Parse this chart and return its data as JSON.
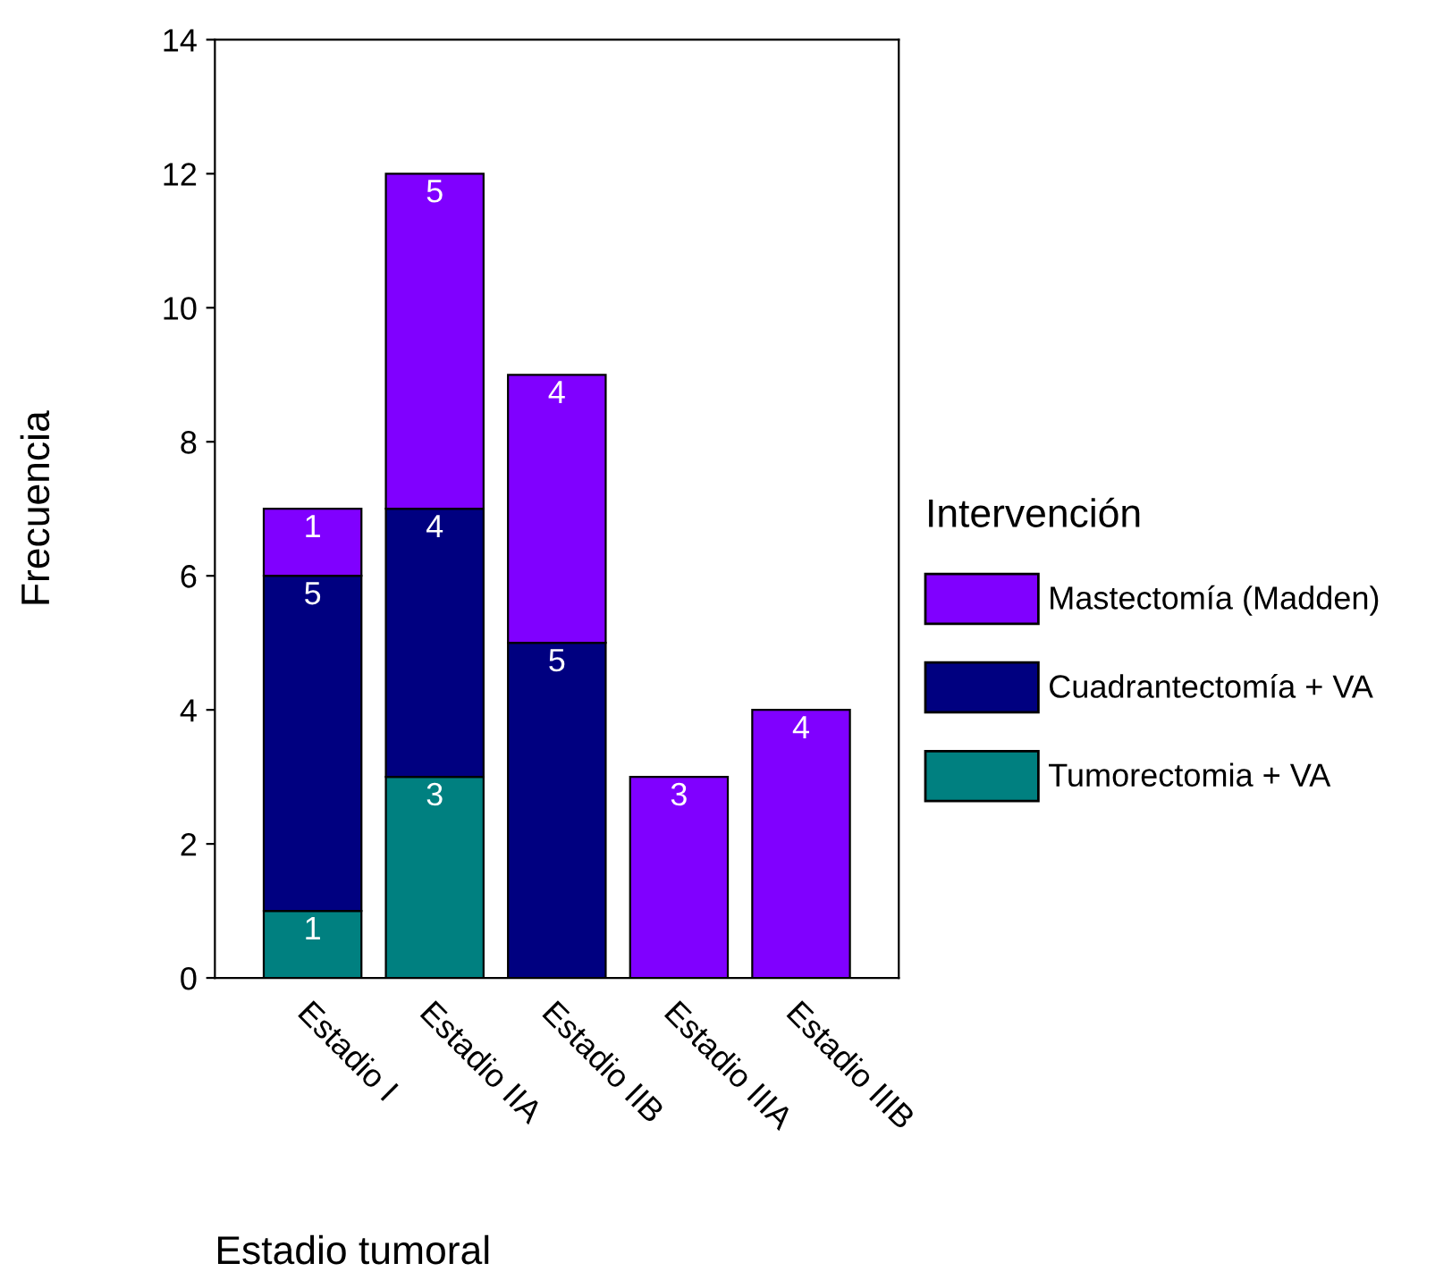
{
  "chart_data": {
    "type": "bar",
    "stacked": true,
    "xlabel": "Estadio tumoral",
    "ylabel": "Frecuencia",
    "legend_title": "Intervención",
    "legend": "right",
    "categories": [
      "Estadio I",
      "Estadio IIA",
      "Estadio IIB",
      "Estadio IIIA",
      "Estadio IIIB"
    ],
    "series": [
      {
        "name": "Tumorectomia + VA",
        "color": "#008080",
        "values": [
          1,
          3,
          null,
          null,
          null
        ]
      },
      {
        "name": "Cuadrantectomía + VA",
        "color": "#000080",
        "values": [
          5,
          4,
          5,
          null,
          null
        ]
      },
      {
        "name": "Mastectomía (Madden)",
        "color": "#8000ff",
        "values": [
          1,
          5,
          4,
          3,
          4
        ]
      }
    ],
    "ylim": [
      0,
      14
    ],
    "yticks": [
      0,
      2,
      4,
      6,
      8,
      10,
      12,
      14
    ],
    "grid": false,
    "data_labels": true
  }
}
